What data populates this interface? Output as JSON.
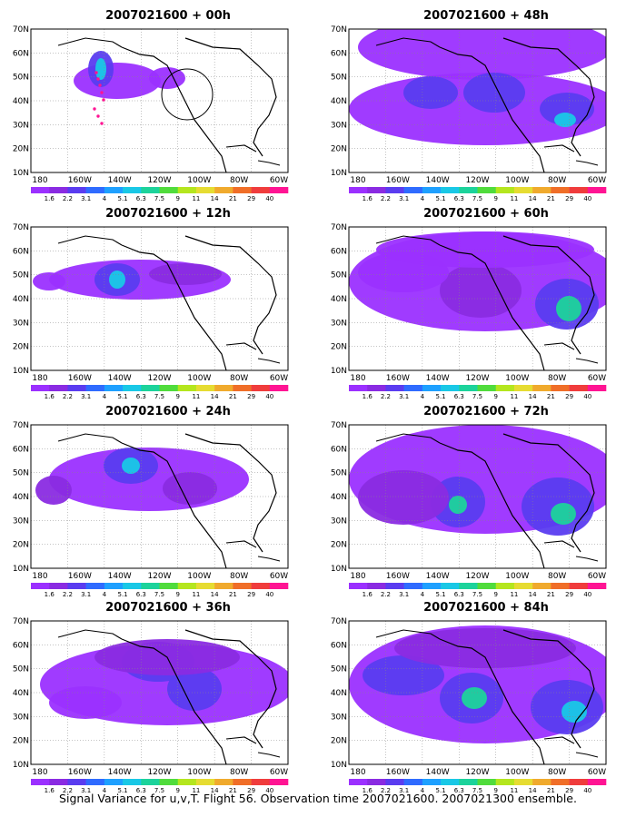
{
  "figure": {
    "caption": "Signal Variance for u,v,T. Flight 56. Observation time 2007021600. 2007021300 ensemble.",
    "lat_labels": [
      "10N",
      "20N",
      "30N",
      "40N",
      "50N",
      "60N",
      "70N"
    ],
    "lon_labels": [
      "180",
      "160W",
      "140W",
      "120W",
      "100W",
      "80W",
      "60W"
    ],
    "colorbar": {
      "labels": [
        "1.6",
        "2.2",
        "3.1",
        "4",
        "5.1",
        "6.3",
        "7.5",
        "9",
        "11",
        "14",
        "21",
        "29",
        "40"
      ],
      "colors": [
        "#9b30ff",
        "#8a2be2",
        "#5a3cf0",
        "#2f6bff",
        "#1ea0ff",
        "#19c8e6",
        "#1cd39b",
        "#50dc3c",
        "#b4e61e",
        "#e6dc32",
        "#f0aa2d",
        "#f06e28",
        "#f03c3c",
        "#ff1493"
      ]
    }
  },
  "panels": [
    {
      "title": "2007021600 + 00h"
    },
    {
      "title": "2007021600 + 48h"
    },
    {
      "title": "2007021600 + 12h"
    },
    {
      "title": "2007021600 + 60h"
    },
    {
      "title": "2007021600 + 24h"
    },
    {
      "title": "2007021600 + 72h"
    },
    {
      "title": "2007021600 + 36h"
    },
    {
      "title": "2007021600 + 84h"
    }
  ]
}
